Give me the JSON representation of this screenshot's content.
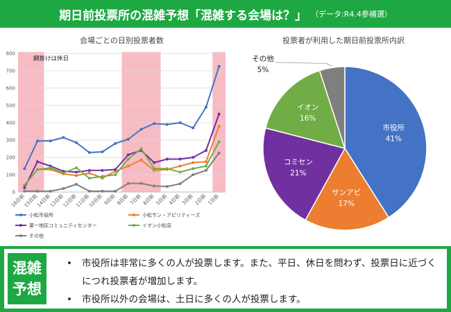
{
  "header": {
    "title": "期日前投票所の混雑予想「混雑する会場は？」",
    "subtitle": "（データ:R4.4参補選）"
  },
  "footer": {
    "badge_line1": "混雑",
    "badge_line2": "予想",
    "bullets": [
      "市役所は非常に多くの人が投票します。また、平日、休日を問わず、投票日に近づくにつれ投票者が増加します。",
      "市役所以外の会場は、土日に多くの人が投票します。"
    ]
  },
  "colors": {
    "header_bg": "#1ea843",
    "holiday_band": "#f7bcc3",
    "series": [
      "#4472c4",
      "#ed7d31",
      "#7030a0",
      "#70ad47",
      "#7f7f7f"
    ]
  },
  "chart_data": [
    {
      "type": "line",
      "title": "会場ごとの日別投票者数",
      "annotation": "網掛けは休日",
      "holiday_ranges": [
        [
          "16日前",
          "15日前"
        ],
        [
          "8日前",
          "6日前"
        ],
        [
          "1日前",
          "1日前"
        ]
      ],
      "x": [
        "16日前",
        "15日前",
        "14日前",
        "13日前",
        "12日前",
        "11日前",
        "10日前",
        "9日前",
        "8日前",
        "7日前",
        "6日前",
        "5日前",
        "4日前",
        "3日前",
        "2日前",
        "1日前"
      ],
      "yticks": [
        0,
        100,
        200,
        300,
        400,
        500,
        600,
        700,
        800
      ],
      "ylim": [
        0,
        800
      ],
      "grid": true,
      "legend_position": "bottom",
      "series": [
        {
          "name": "小松市役所",
          "values": [
            135,
            295,
            295,
            315,
            285,
            228,
            232,
            280,
            305,
            362,
            395,
            390,
            400,
            370,
            490,
            725
          ]
        },
        {
          "name": "小松サン・アビリティーズ",
          "values": [
            40,
            130,
            130,
            105,
            95,
            110,
            80,
            120,
            150,
            185,
            125,
            130,
            150,
            170,
            175,
            380
          ]
        },
        {
          "name": "第一地区コミュニティセンター",
          "values": [
            25,
            175,
            150,
            120,
            115,
            125,
            125,
            130,
            215,
            240,
            170,
            190,
            190,
            200,
            240,
            450
          ]
        },
        {
          "name": "イオン小松店",
          "values": [
            40,
            130,
            140,
            110,
            140,
            80,
            90,
            100,
            190,
            250,
            135,
            135,
            115,
            135,
            150,
            290
          ]
        },
        {
          "name": "その他",
          "values": [
            5,
            5,
            5,
            20,
            45,
            5,
            5,
            5,
            50,
            50,
            35,
            32,
            48,
            100,
            125,
            225
          ]
        }
      ]
    },
    {
      "type": "pie",
      "title": "投票者が利用した期日前投票所内訳",
      "slices": [
        {
          "label": "市役所",
          "pct_label": "41%",
          "value": 41,
          "color": "#4472c4"
        },
        {
          "label": "サンアビ",
          "pct_label": "17%",
          "value": 17,
          "color": "#ed7d31"
        },
        {
          "label": "コミセン",
          "pct_label": "21%",
          "value": 21,
          "color": "#7030a0"
        },
        {
          "label": "イオン",
          "pct_label": "16%",
          "value": 16,
          "color": "#70ad47"
        },
        {
          "label": "その他",
          "pct_label": "5%",
          "value": 5,
          "color": "#7f7f7f"
        }
      ]
    }
  ]
}
